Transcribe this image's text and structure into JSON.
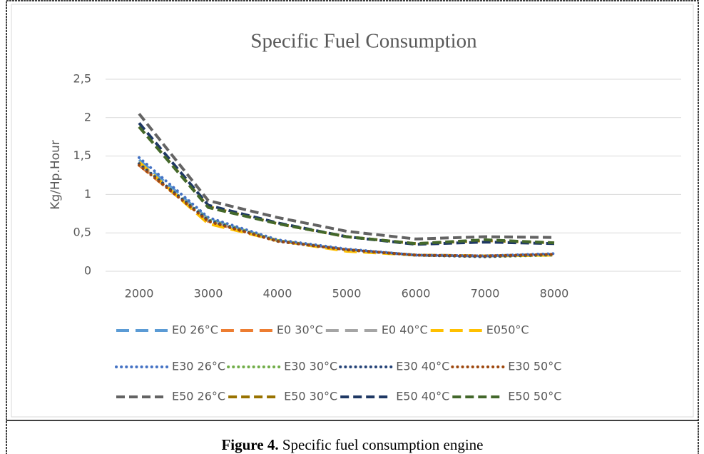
{
  "chart_data": {
    "type": "line",
    "title": "Specific Fuel Consumption",
    "y_label": "Kg/Hp.Hour",
    "x": [
      2000,
      3000,
      4000,
      5000,
      6000,
      7000,
      8000
    ],
    "xlim": [
      1515,
      9835
    ],
    "xticks": [
      2000,
      3000,
      4000,
      5000,
      6000,
      7000,
      8000
    ],
    "ylim": [
      0,
      2.5
    ],
    "yticks": [
      0,
      {
        "value": 0.5,
        "label": "0,5"
      },
      1,
      {
        "value": 1.5,
        "label": "1,5"
      },
      2,
      {
        "value": 2.5,
        "label": "2,5"
      }
    ],
    "grid": true,
    "legend": "bottom",
    "series": [
      {
        "name": "E0 26°C",
        "color": "#5b9bd5",
        "style": "longdash",
        "values": [
          1.45,
          0.68,
          0.4,
          0.28,
          0.21,
          0.2,
          0.22
        ]
      },
      {
        "name": "E0 30°C",
        "color": "#ed7d31",
        "style": "longdash",
        "values": [
          1.38,
          0.65,
          0.4,
          0.28,
          0.21,
          0.2,
          0.21
        ]
      },
      {
        "name": "E0 40°C",
        "color": "#a5a5a5",
        "style": "longdash",
        "values": [
          1.4,
          0.66,
          0.4,
          0.28,
          0.21,
          0.2,
          0.22
        ]
      },
      {
        "name": "E050°C",
        "color": "#ffc000",
        "style": "longdash",
        "values": [
          1.42,
          0.62,
          0.4,
          0.26,
          0.21,
          0.2,
          0.21
        ]
      },
      {
        "name": "E30 26°C",
        "color": "#4472c4",
        "style": "dot",
        "values": [
          1.48,
          0.7,
          0.41,
          0.29,
          0.21,
          0.2,
          0.23
        ]
      },
      {
        "name": "E30 30°C",
        "color": "#70ad47",
        "style": "dot",
        "values": [
          1.4,
          0.67,
          0.4,
          0.28,
          0.21,
          0.19,
          0.21
        ]
      },
      {
        "name": "E30 40°C",
        "color": "#264478",
        "style": "dot",
        "values": [
          1.4,
          0.66,
          0.39,
          0.28,
          0.21,
          0.19,
          0.22
        ]
      },
      {
        "name": "E30 50°C",
        "color": "#9e480e",
        "style": "dot",
        "values": [
          1.38,
          0.65,
          0.39,
          0.28,
          0.21,
          0.2,
          0.22
        ]
      },
      {
        "name": "E50 26°C",
        "color": "#636363",
        "style": "dash",
        "values": [
          2.05,
          0.92,
          0.7,
          0.52,
          0.42,
          0.45,
          0.44
        ]
      },
      {
        "name": "E50 30°C",
        "color": "#997300",
        "style": "dash",
        "values": [
          1.88,
          0.84,
          0.62,
          0.45,
          0.36,
          0.4,
          0.37
        ]
      },
      {
        "name": "E50 40°C",
        "color": "#1f3864",
        "style": "dash",
        "values": [
          1.93,
          0.86,
          0.63,
          0.45,
          0.35,
          0.38,
          0.36
        ]
      },
      {
        "name": "E50 50°C",
        "color": "#43682b",
        "style": "dash",
        "values": [
          1.88,
          0.83,
          0.62,
          0.45,
          0.36,
          0.41,
          0.37
        ]
      }
    ]
  },
  "caption": {
    "label": "Figure 4.",
    "text": "Specific fuel consumption engine"
  }
}
